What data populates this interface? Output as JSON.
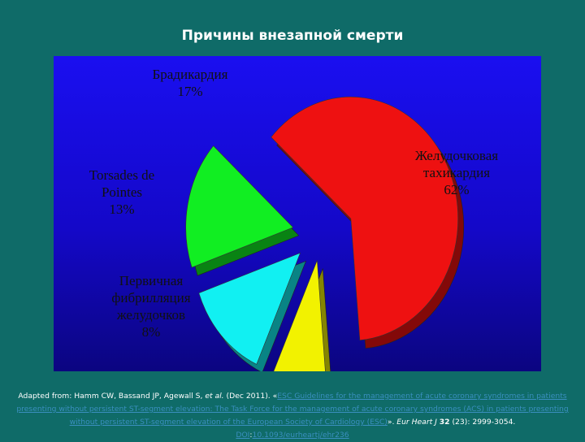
{
  "slide": {
    "title": "Причины внезапной смерти"
  },
  "chart_data": {
    "type": "pie",
    "style": "3d-exploded",
    "slices": [
      {
        "label_lines": [
          "Желудочковая",
          "тахикардия"
        ],
        "percent_label": "62%",
        "value": 62,
        "color": "#ee1111"
      },
      {
        "label_lines": [
          "Первичная",
          "фибрилляция",
          "желудочков"
        ],
        "percent_label": "8%",
        "value": 8,
        "color": "#f2f200"
      },
      {
        "label_lines": [
          "Torsades de",
          "Pointes"
        ],
        "percent_label": "13%",
        "value": 13,
        "color": "#11f0f2"
      },
      {
        "label_lines": [
          "Брадикардия"
        ],
        "percent_label": "17%",
        "value": 17,
        "color": "#11ee22"
      }
    ]
  },
  "citation": {
    "prefix": "Adapted from: Hamm CW, Bassand JP, Agewall S, ",
    "et_al": "et al.",
    "date": " (Dec 2011). «",
    "link": "ESC Guidelines for the management of acute coronary syndromes in patients presenting without persistent ST-segment elevation: The Task Force for the management of acute coronary syndromes (ACS) in patients presenting without persistent ST-segment elevation of the European Society of Cardiology (ESC)",
    "after_link": "». ",
    "journal": "Eur Heart J",
    "volume_sep": " ",
    "volume": "32",
    "pages": " (23): 2999-3054. ",
    "doi_label": "DOI",
    "doi_sep": ":",
    "doi_value": "10.1093/eurheartj/ehr236"
  }
}
